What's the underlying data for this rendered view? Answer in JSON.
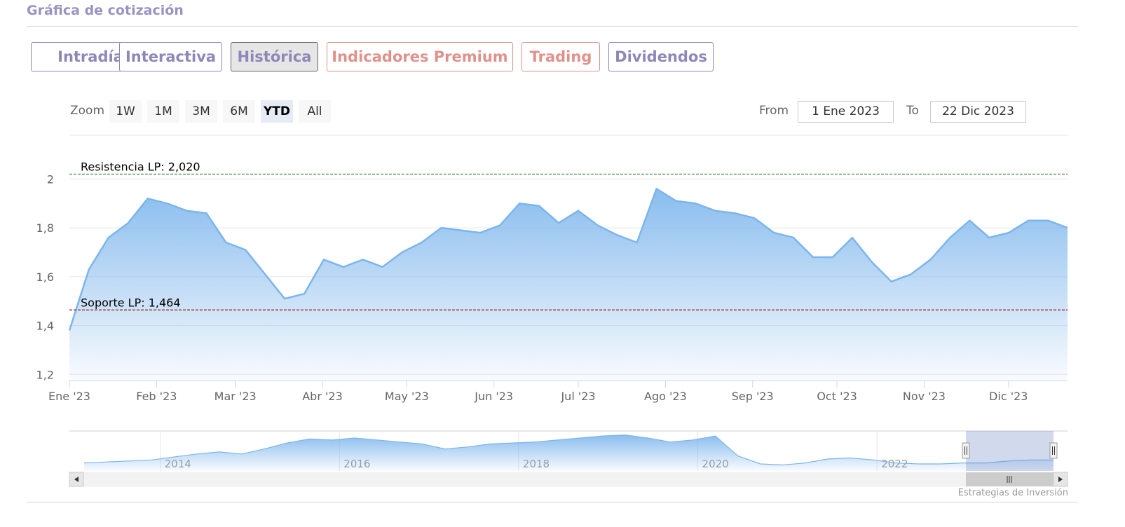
{
  "header": {
    "title": "Gráfica de cotización"
  },
  "tabs": [
    "Intradía",
    "Interactiva",
    "Histórica",
    "Indicadores Premium",
    "Trading",
    "Dividendos"
  ],
  "active_tab": 2,
  "range_selector": {
    "label": "Zoom",
    "buttons": [
      "1W",
      "1M",
      "3M",
      "6M",
      "YTD",
      "All"
    ],
    "active": 4,
    "from_label": "From",
    "from": "1 Ene 2023",
    "to_label": "To",
    "to": "22 Dic 2023"
  },
  "chart_data": {
    "type": "area",
    "color": "#7cb5ec",
    "xlim": [
      0,
      355
    ],
    "xticks": [
      {
        "value": 0,
        "label": "Ene '23"
      },
      {
        "value": 31,
        "label": "Feb '23"
      },
      {
        "value": 59,
        "label": "Mar '23"
      },
      {
        "value": 90,
        "label": "Abr '23"
      },
      {
        "value": 120,
        "label": "May '23"
      },
      {
        "value": 151,
        "label": "Jun '23"
      },
      {
        "value": 181,
        "label": "Jul '23"
      },
      {
        "value": 212,
        "label": "Ago '23"
      },
      {
        "value": 243,
        "label": "Sep '23"
      },
      {
        "value": 273,
        "label": "Oct '23"
      },
      {
        "value": 304,
        "label": "Nov '23"
      },
      {
        "value": 334,
        "label": "Dic '23"
      }
    ],
    "ylim": [
      1.175,
      2.07
    ],
    "yticks": [
      {
        "value": 1.2,
        "label": "1,2"
      },
      {
        "value": 1.4,
        "label": "1,4"
      },
      {
        "value": 1.6,
        "label": "1,6"
      },
      {
        "value": 1.8,
        "label": "1,8"
      },
      2
    ],
    "grid": true,
    "values": [
      1.38,
      1.63,
      1.76,
      1.82,
      1.92,
      1.9,
      1.87,
      1.86,
      1.74,
      1.71,
      1.61,
      1.51,
      1.53,
      1.67,
      1.64,
      1.67,
      1.64,
      1.7,
      1.74,
      1.8,
      1.79,
      1.78,
      1.81,
      1.9,
      1.89,
      1.82,
      1.87,
      1.81,
      1.77,
      1.74,
      1.96,
      1.91,
      1.9,
      1.87,
      1.86,
      1.84,
      1.78,
      1.76,
      1.68,
      1.68,
      1.76,
      1.66,
      1.58,
      1.61,
      1.67,
      1.76,
      1.83,
      1.76,
      1.78,
      1.83,
      1.83,
      1.8
    ],
    "annotations": [
      {
        "value": 2.02,
        "label": "Resistencia LP: 2,020",
        "color": "#2e7d32"
      },
      {
        "value": 1.464,
        "label": "Soporte LP: 1,464",
        "color": "#8b1a1a"
      }
    ]
  },
  "navigator": {
    "type": "area",
    "xlim": [
      2013.15,
      2023.97
    ],
    "xticks": [
      2014,
      2016,
      2018,
      2020,
      2022
    ],
    "ylim": [
      1,
      5
    ],
    "values": [
      1.8,
      1.9,
      2.0,
      2.1,
      2.4,
      2.7,
      2.9,
      2.7,
      3.2,
      3.8,
      4.2,
      4.1,
      4.3,
      4.1,
      3.9,
      3.7,
      3.2,
      3.4,
      3.7,
      3.8,
      3.9,
      4.1,
      4.3,
      4.5,
      4.6,
      4.3,
      3.9,
      4.1,
      4.5,
      2.5,
      1.7,
      1.6,
      1.8,
      2.2,
      2.3,
      2.1,
      1.8,
      1.7,
      1.7,
      1.8,
      1.8,
      2.0,
      2.1,
      2.1
    ]
  },
  "footer": {
    "credit": "Estrategias de Inversión"
  }
}
